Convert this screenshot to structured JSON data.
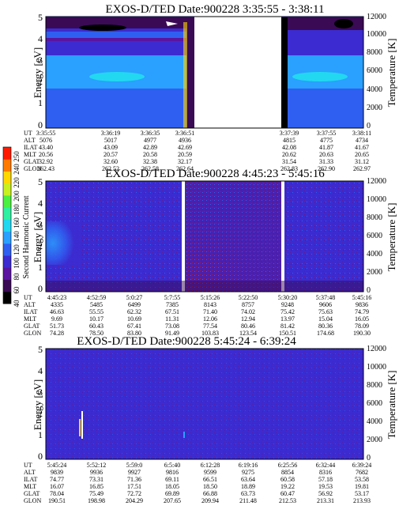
{
  "panels": [
    {
      "title": "EXOS-D/TED   Date:900228   3:35:55 - 3:38:11",
      "ylabel": "Energy [eV]",
      "y2label": "Temperature [K]",
      "yticks": [
        "0",
        "1",
        "2",
        "3",
        "4",
        "5"
      ],
      "y2ticks": [
        "0",
        "2000",
        "4000",
        "6000",
        "8000",
        "10000",
        "12000"
      ],
      "table": {
        "row_labels": [
          "UT",
          "ALT",
          "ILAT",
          "MLT",
          "GLAT",
          "GLON"
        ],
        "columns": [
          [
            "3:35:55",
            "5076",
            "43.40",
            "20.56",
            "32.92",
            "262.43"
          ],
          [
            "3:36:19",
            "5017",
            "43.09",
            "20.57",
            "32.60",
            "262.52"
          ],
          [
            "3:36:35",
            "4977",
            "42.89",
            "20.58",
            "32.38",
            "262.58"
          ],
          [
            "3:36:51",
            "4936",
            "42.69",
            "20.59",
            "32.17",
            "262.64"
          ],
          [
            "3:37:39",
            "4815",
            "42.08",
            "20.62",
            "31.54",
            "262.83"
          ],
          [
            "3:37:55",
            "4775",
            "41.87",
            "20.63",
            "31.33",
            "262.90"
          ],
          [
            "3:38:11",
            "4734",
            "41.67",
            "20.65",
            "31.12",
            "262.97"
          ]
        ]
      }
    },
    {
      "title": "EXOS-D/TED   Date:900228   4:45:23 - 5:45:16",
      "ylabel": "Energy [eV]",
      "y2label": "Temperature [K]",
      "yticks": [
        "0",
        "1",
        "2",
        "3",
        "4",
        "5"
      ],
      "y2ticks": [
        "0",
        "2000",
        "4000",
        "6000",
        "8000",
        "10000",
        "12000"
      ],
      "table": {
        "row_labels": [
          "UT",
          "ALT",
          "ILAT",
          "MLT",
          "GLAT",
          "GLON"
        ],
        "columns": [
          [
            "4:45:23",
            "4335",
            "46.63",
            "9.69",
            "51.73",
            "74.28"
          ],
          [
            "4:52:59",
            "5485",
            "55.55",
            "10.17",
            "60.43",
            "78.50"
          ],
          [
            "5:0:27",
            "6499",
            "62.32",
            "10.69",
            "67.41",
            "83.80"
          ],
          [
            "5:7:55",
            "7385",
            "67.51",
            "11.31",
            "73.08",
            "91.49"
          ],
          [
            "5:15:26",
            "8143",
            "71.40",
            "12.06",
            "77.54",
            "103.83"
          ],
          [
            "5:22:50",
            "8757",
            "74.02",
            "12.94",
            "80.46",
            "123.54"
          ],
          [
            "5:30:20",
            "9248",
            "75.42",
            "13.97",
            "81.42",
            "150.51"
          ],
          [
            "5:37:48",
            "9606",
            "75.63",
            "15.04",
            "80.36",
            "174.68"
          ],
          [
            "5:45:16",
            "9836",
            "74.79",
            "16.05",
            "78.09",
            "190.30"
          ]
        ]
      }
    },
    {
      "title": "EXOS-D/TED   Date:900228   5:45:24 - 6:39:24",
      "ylabel": "Energy [eV]",
      "y2label": "Temperature [K]",
      "yticks": [
        "0",
        "1",
        "2",
        "3",
        "4",
        "5"
      ],
      "y2ticks": [
        "0",
        "2000",
        "4000",
        "6000",
        "8000",
        "10000",
        "12000"
      ],
      "table": {
        "row_labels": [
          "UT",
          "ALT",
          "ILAT",
          "MLT",
          "GLAT",
          "GLON"
        ],
        "columns": [
          [
            "5:45:24",
            "9839",
            "74.77",
            "16.07",
            "78.04",
            "190.51"
          ],
          [
            "5:52:12",
            "9936",
            "73.31",
            "16.85",
            "75.49",
            "198.98"
          ],
          [
            "5:59:0",
            "9927",
            "71.36",
            "17.51",
            "72.72",
            "204.29"
          ],
          [
            "6:5:40",
            "9816",
            "69.11",
            "18.05",
            "69.89",
            "207.65"
          ],
          [
            "6:12:28",
            "9599",
            "66.51",
            "18.50",
            "66.88",
            "209.94"
          ],
          [
            "6:19:16",
            "9275",
            "63.64",
            "18.89",
            "63.73",
            "211.48"
          ],
          [
            "6:25:56",
            "8854",
            "60.58",
            "19.22",
            "60.47",
            "212.53"
          ],
          [
            "6:32:44",
            "8316",
            "57.18",
            "19.53",
            "56.92",
            "213.31"
          ],
          [
            "6:39:24",
            "7682",
            "53.58",
            "19.81",
            "53.17",
            "213.93"
          ]
        ]
      }
    }
  ],
  "colorbar": {
    "label": "Second Harmonic Current",
    "ticks": [
      "40",
      "60",
      "80",
      "100",
      "120",
      "140",
      "160",
      "180",
      "200",
      "220",
      "240",
      "250"
    ],
    "colors": [
      "#000000",
      "#3a0a55",
      "#5a14a0",
      "#3b2bd0",
      "#2f5ff0",
      "#2aa0ff",
      "#22d8f0",
      "#2ef0a0",
      "#4cf040",
      "#c8f020",
      "#ffd800",
      "#ff7a00",
      "#ff1a00"
    ]
  },
  "chart_data": [
    {
      "type": "heatmap",
      "title": "EXOS-D/TED   Date:900228   3:35:55 - 3:38:11",
      "xlabel": "UT",
      "ylabel": "Energy [eV]",
      "y2label": "Temperature [K]",
      "x": [
        "3:35:55",
        "3:36:19",
        "3:36:35",
        "3:36:51",
        "3:37:39",
        "3:37:55",
        "3:38:11"
      ],
      "ylim": [
        0,
        5
      ],
      "y2lim": [
        0,
        12000
      ],
      "data_gaps": [
        [
          "3:36:51",
          "3:37:39"
        ]
      ],
      "features": [
        {
          "desc": "intense band",
          "energy_center": 2.4,
          "color": "#22d8f0"
        },
        {
          "desc": "dark patch near top",
          "energy": 4.8,
          "color": "#000000"
        }
      ]
    },
    {
      "type": "heatmap",
      "title": "EXOS-D/TED   Date:900228   4:45:23 - 5:45:16",
      "xlabel": "UT",
      "ylabel": "Energy [eV]",
      "y2label": "Temperature [K]",
      "x": [
        "4:45:23",
        "4:52:59",
        "5:0:27",
        "5:7:55",
        "5:15:26",
        "5:22:50",
        "5:30:20",
        "5:37:48",
        "5:45:16"
      ],
      "ylim": [
        0,
        5
      ],
      "y2lim": [
        0,
        12000
      ],
      "data_gaps": [
        [
          "5:15:00",
          "5:15:20"
        ],
        [
          "5:29:30",
          "5:29:50"
        ]
      ]
    },
    {
      "type": "heatmap",
      "title": "EXOS-D/TED   Date:900228   5:45:24 - 6:39:24",
      "xlabel": "UT",
      "ylabel": "Energy [eV]",
      "y2label": "Temperature [K]",
      "x": [
        "5:45:24",
        "5:52:12",
        "5:59:0",
        "6:5:40",
        "6:12:28",
        "6:19:16",
        "6:25:56",
        "6:32:44",
        "6:39:24"
      ],
      "ylim": [
        0,
        5
      ],
      "y2lim": [
        0,
        12000
      ]
    }
  ]
}
